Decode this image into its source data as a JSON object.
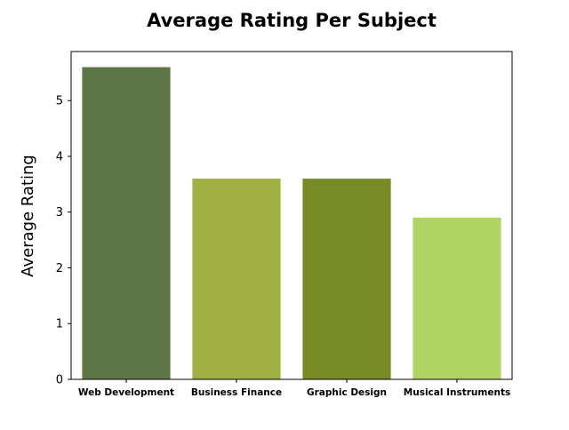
{
  "chart_data": {
    "type": "bar",
    "title": "Average Rating Per Subject",
    "xlabel": "",
    "ylabel": "Average Rating",
    "categories": [
      "Web Development",
      "Business Finance",
      "Graphic Design",
      "Musical Instruments"
    ],
    "values": [
      5.6,
      3.6,
      3.6,
      2.9
    ],
    "colors": [
      "#5f7647",
      "#a0b043",
      "#788b27",
      "#b0d364"
    ],
    "ylim": [
      0,
      5.88
    ],
    "yticks": [
      0,
      1,
      2,
      3,
      4,
      5
    ],
    "grid": false,
    "legend": "none"
  }
}
